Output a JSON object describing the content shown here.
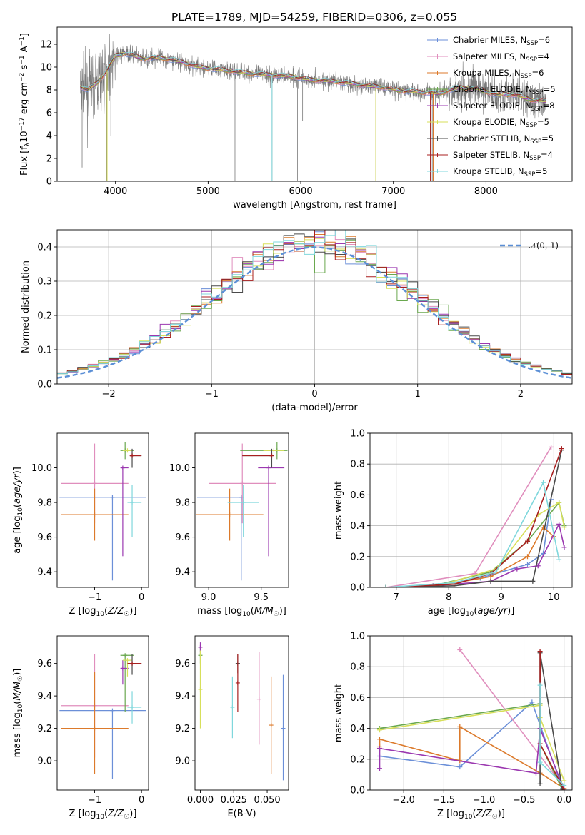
{
  "figure": {
    "title": "PLATE=1789, MJD=54259, FIBERID=0306, z=0.055"
  },
  "colors": {
    "Chabrier MILES": "#6b8fd8",
    "Salpeter MILES": "#e08ebd",
    "Kroupa MILES": "#dc7a2b",
    "Chabrier ELODIE": "#6aa84f",
    "Salpeter ELODIE": "#9b38b0",
    "Kroupa ELODIE": "#d7df5a",
    "Chabrier STELIB": "#4a4a4a",
    "Salpeter STELIB": "#a81f1f",
    "Kroupa STELIB": "#7fd7dc",
    "normal": "#5b8fd6",
    "data": "#7a7a7a"
  },
  "chart_data": [
    {
      "id": "spectrum",
      "type": "line",
      "title": "PLATE=1789, MJD=54259, FIBERID=0306, z=0.055",
      "xlabel": "wavelength [Angstrom, rest frame]",
      "ylabel": "Flux [fλ10⁻¹⁷ erg cm⁻² s⁻¹ A⁻¹]",
      "xlim": [
        3370,
        8930
      ],
      "ylim": [
        0,
        13.5
      ],
      "xticks": [
        4000,
        5000,
        6000,
        7000,
        8000
      ],
      "yticks": [
        0,
        2,
        4,
        6,
        8,
        10,
        12
      ],
      "grid": false,
      "legend": "top-right",
      "legend_entries": [
        {
          "label": "Chabrier MILES, N",
          "sub": "SSP",
          "n": "=6"
        },
        {
          "label": "Salpeter MILES, N",
          "sub": "SSP",
          "n": "=4"
        },
        {
          "label": "Kroupa MILES, N",
          "sub": "SSP",
          "n": "=6"
        },
        {
          "label": "Chabrier ELODIE, N",
          "sub": "SSP",
          "n": "=5"
        },
        {
          "label": "Salpeter ELODIE, N",
          "sub": "SSP",
          "n": "=8"
        },
        {
          "label": "Kroupa ELODIE, N",
          "sub": "SSP",
          "n": "=5"
        },
        {
          "label": "Chabrier STELIB, N",
          "sub": "SSP",
          "n": "=5"
        },
        {
          "label": "Salpeter STELIB, N",
          "sub": "SSP",
          "n": "=4"
        },
        {
          "label": "Kroupa STELIB, N",
          "sub": "SSP",
          "n": "=5"
        }
      ],
      "continuum": {
        "x": [
          3620,
          3700,
          3800,
          3900,
          4000,
          4100,
          4200,
          4300,
          4400,
          4500,
          4700,
          4900,
          5100,
          5300,
          5500,
          5700,
          5900,
          6100,
          6300,
          6500,
          6700,
          6900,
          7100,
          7300,
          7500,
          7700,
          7900,
          8100,
          8300,
          8500,
          8650
        ],
        "y": [
          8.3,
          8.0,
          8.6,
          9.6,
          11.0,
          11.2,
          11.0,
          10.7,
          10.8,
          10.8,
          10.5,
          10.0,
          9.8,
          9.6,
          9.4,
          9.3,
          9.2,
          8.9,
          8.8,
          8.6,
          8.4,
          8.2,
          7.9,
          7.8,
          7.7,
          8.2,
          8.1,
          7.6,
          7.6,
          7.1,
          7.0
        ]
      }
    },
    {
      "id": "residuals",
      "type": "line",
      "xlabel": "(data-model)/error",
      "ylabel": "Normed distribution",
      "xlim": [
        -2.5,
        2.5
      ],
      "ylim": [
        0,
        0.45
      ],
      "xticks": [
        -2,
        -1,
        0,
        1,
        2
      ],
      "yticks": [
        0.0,
        0.1,
        0.2,
        0.3,
        0.4
      ],
      "grid": true,
      "legend": "top-right",
      "legend_label": "𝒩(0, 1)",
      "bin_width": 0.1
    },
    {
      "id": "age-vs-Z",
      "type": "scatter",
      "xlabel": "Z [log₁₀(Z/Z☉)]",
      "ylabel": "age  [log₁₀(age/yr)]",
      "xlim": [
        -1.8,
        0.15
      ],
      "ylim": [
        9.31,
        10.2
      ],
      "xticks": [
        -1,
        0
      ],
      "yticks": [
        9.4,
        9.6,
        9.8,
        10.0
      ],
      "grid": false,
      "series": [
        {
          "name": "Chabrier MILES",
          "x": -0.62,
          "xerr": [
            1.13,
            0.72
          ],
          "y": 9.83,
          "yerr": [
            0.48,
            0.0
          ]
        },
        {
          "name": "Salpeter MILES",
          "x": -1.0,
          "xerr": [
            0.72,
            0.72
          ],
          "y": 9.91,
          "yerr": [
            0.23,
            0.23
          ]
        },
        {
          "name": "Kroupa MILES",
          "x": -1.0,
          "xerr": [
            0.72,
            0.72
          ],
          "y": 9.73,
          "yerr": [
            0.15,
            0.15
          ]
        },
        {
          "name": "Chabrier ELODIE",
          "x": -0.35,
          "xerr": [
            0.1,
            0.18
          ],
          "y": 10.1,
          "yerr": [
            0.05,
            0.05
          ]
        },
        {
          "name": "Salpeter ELODIE",
          "x": -0.4,
          "xerr": [
            0.05,
            0.12
          ],
          "y": 10.0,
          "yerr": [
            0.51,
            0.0
          ]
        },
        {
          "name": "Kroupa ELODIE",
          "x": -0.3,
          "xerr": [
            0.1,
            0.1
          ],
          "y": 10.1,
          "yerr": [
            0.0,
            0.0
          ]
        },
        {
          "name": "Chabrier STELIB",
          "x": -0.2,
          "xerr": [
            0.05,
            0.2
          ],
          "y": 10.07,
          "yerr": [
            0.07,
            0.04
          ]
        },
        {
          "name": "Salpeter STELIB",
          "x": -0.2,
          "xerr": [
            0.05,
            0.2
          ],
          "y": 10.07,
          "yerr": [
            0.0,
            0.0
          ]
        },
        {
          "name": "Kroupa STELIB",
          "x": -0.2,
          "xerr": [
            0.1,
            0.2
          ],
          "y": 9.8,
          "yerr": [
            0.2,
            0.1
          ]
        }
      ]
    },
    {
      "id": "age-vs-mass",
      "type": "scatter",
      "xlabel": "mass [log₁₀(M/M☉)]",
      "ylabel": "",
      "xlim": [
        8.87,
        9.76
      ],
      "ylim": [
        9.31,
        10.2
      ],
      "xticks": [
        9.0,
        9.5
      ],
      "yticks": [
        9.4,
        9.6,
        9.8,
        10.0
      ],
      "grid": false,
      "series": [
        {
          "name": "Chabrier MILES",
          "x": 9.31,
          "xerr": [
            0.42,
            0.0
          ],
          "y": 9.83,
          "yerr": [
            0.48,
            0.0
          ]
        },
        {
          "name": "Salpeter MILES",
          "x": 9.32,
          "xerr": [
            0.32,
            0.32
          ],
          "y": 9.91,
          "yerr": [
            0.23,
            0.23
          ]
        },
        {
          "name": "Kroupa MILES",
          "x": 9.2,
          "xerr": [
            0.32,
            0.32
          ],
          "y": 9.73,
          "yerr": [
            0.15,
            0.15
          ]
        },
        {
          "name": "Chabrier ELODIE",
          "x": 9.65,
          "xerr": [
            0.35,
            0.1
          ],
          "y": 10.1,
          "yerr": [
            0.05,
            0.05
          ]
        },
        {
          "name": "Salpeter ELODIE",
          "x": 9.57,
          "xerr": [
            0.1,
            0.15
          ],
          "y": 10.0,
          "yerr": [
            0.51,
            0.0
          ]
        },
        {
          "name": "Kroupa ELODIE",
          "x": 9.62,
          "xerr": [
            0.1,
            0.1
          ],
          "y": 10.1,
          "yerr": [
            0.0,
            0.0
          ]
        },
        {
          "name": "Chabrier STELIB",
          "x": 9.6,
          "xerr": [
            0.28,
            0.0
          ],
          "y": 10.07,
          "yerr": [
            0.07,
            0.04
          ]
        },
        {
          "name": "Salpeter STELIB",
          "x": 9.6,
          "xerr": [
            0.28,
            0.0
          ],
          "y": 10.07,
          "yerr": [
            0.0,
            0.0
          ]
        },
        {
          "name": "Kroupa STELIB",
          "x": 9.33,
          "xerr": [
            0.15,
            0.15
          ],
          "y": 9.8,
          "yerr": [
            0.2,
            0.1
          ]
        }
      ]
    },
    {
      "id": "massweight-vs-age",
      "type": "line",
      "xlabel": "age  [log₁₀(age/yr)]",
      "ylabel": "mass weight",
      "xlim": [
        6.5,
        10.35
      ],
      "ylim": [
        0,
        1
      ],
      "xticks": [
        7,
        8,
        9,
        10
      ],
      "yticks": [
        0.0,
        0.2,
        0.4,
        0.6,
        0.8,
        1.0
      ],
      "grid": true,
      "series": [
        {
          "name": "Chabrier MILES",
          "x": [
            6.8,
            7.7,
            8.6,
            9.5,
            9.8,
            9.95
          ],
          "y": [
            0.0,
            0.01,
            0.06,
            0.15,
            0.22,
            0.57
          ]
        },
        {
          "name": "Salpeter MILES",
          "x": [
            6.8,
            8.5,
            9.95
          ],
          "y": [
            0.0,
            0.09,
            0.91
          ]
        },
        {
          "name": "Kroupa MILES",
          "x": [
            6.8,
            7.8,
            8.8,
            9.5,
            9.8,
            10.0
          ],
          "y": [
            0.0,
            0.01,
            0.07,
            0.2,
            0.39,
            0.33
          ]
        },
        {
          "name": "Chabrier ELODIE",
          "x": [
            6.8,
            7.7,
            8.8,
            9.5,
            10.1,
            10.2
          ],
          "y": [
            0.0,
            0.01,
            0.1,
            0.3,
            0.55,
            0.4
          ]
        },
        {
          "name": "Salpeter ELODIE",
          "x": [
            6.8,
            7.7,
            8.8,
            9.3,
            9.7,
            10.1,
            10.2
          ],
          "y": [
            0.0,
            0.01,
            0.04,
            0.12,
            0.14,
            0.41,
            0.26
          ]
        },
        {
          "name": "Kroupa ELODIE",
          "x": [
            6.8,
            7.8,
            8.9,
            9.7,
            10.1,
            10.2
          ],
          "y": [
            0.0,
            0.01,
            0.12,
            0.47,
            0.55,
            0.39
          ]
        },
        {
          "name": "Chabrier STELIB",
          "x": [
            6.8,
            8.1,
            8.8,
            9.6,
            10.15
          ],
          "y": [
            0.0,
            0.01,
            0.04,
            0.04,
            0.89
          ]
        },
        {
          "name": "Salpeter STELIB",
          "x": [
            6.8,
            8.1,
            8.8,
            9.5,
            10.15
          ],
          "y": [
            0.0,
            0.02,
            0.09,
            0.3,
            0.9
          ]
        },
        {
          "name": "Kroupa STELIB",
          "x": [
            6.8,
            8.1,
            8.9,
            9.8,
            10.1
          ],
          "y": [
            0.0,
            0.03,
            0.1,
            0.68,
            0.18
          ]
        }
      ]
    },
    {
      "id": "mass-vs-Z",
      "type": "scatter",
      "xlabel": "Z [log₁₀(Z/Z☉)]",
      "ylabel": "mass [log₁₀(M/M☉)]",
      "xlim": [
        -1.8,
        0.15
      ],
      "ylim": [
        8.82,
        9.77
      ],
      "xticks": [
        -1,
        0
      ],
      "yticks": [
        9.0,
        9.2,
        9.4,
        9.6
      ],
      "grid": false,
      "series": [
        {
          "name": "Chabrier MILES",
          "x": -0.62,
          "xerr": [
            1.13,
            0.72
          ],
          "y": 9.31,
          "yerr": [
            0.42,
            0.0
          ]
        },
        {
          "name": "Salpeter MILES",
          "x": -1.0,
          "xerr": [
            0.72,
            0.72
          ],
          "y": 9.34,
          "yerr": [
            0.32,
            0.32
          ]
        },
        {
          "name": "Kroupa MILES",
          "x": -1.0,
          "xerr": [
            0.72,
            0.72
          ],
          "y": 9.2,
          "yerr": [
            0.28,
            0.35
          ]
        },
        {
          "name": "Chabrier ELODIE",
          "x": -0.35,
          "xerr": [
            0.1,
            0.18
          ],
          "y": 9.65,
          "yerr": [
            0.35,
            0.0
          ]
        },
        {
          "name": "Salpeter ELODIE",
          "x": -0.4,
          "xerr": [
            0.05,
            0.12
          ],
          "y": 9.57,
          "yerr": [
            0.1,
            0.05
          ]
        },
        {
          "name": "Kroupa ELODIE",
          "x": -0.3,
          "xerr": [
            0.1,
            0.1
          ],
          "y": 9.62,
          "yerr": [
            0.1,
            0.0
          ]
        },
        {
          "name": "Chabrier STELIB",
          "x": -0.2,
          "xerr": [
            0.05,
            0.2
          ],
          "y": 9.6,
          "yerr": [
            0.07,
            0.06
          ]
        },
        {
          "name": "Salpeter STELIB",
          "x": -0.2,
          "xerr": [
            0.1,
            0.2
          ],
          "y": 9.6,
          "yerr": [
            0.0,
            0.0
          ]
        },
        {
          "name": "Kroupa STELIB",
          "x": -0.2,
          "xerr": [
            0.1,
            0.2
          ],
          "y": 9.33,
          "yerr": [
            0.1,
            0.1
          ]
        }
      ]
    },
    {
      "id": "mass-vs-EBV",
      "type": "scatter",
      "xlabel": "E(B-V)",
      "ylabel": "",
      "xlim": [
        -0.004,
        0.066
      ],
      "ylim": [
        8.82,
        9.77
      ],
      "xticks": [
        0.0,
        0.025,
        0.05
      ],
      "yticks": [
        9.0,
        9.2,
        9.4,
        9.6
      ],
      "grid": false,
      "series": [
        {
          "name": "Chabrier MILES",
          "x": 0.062,
          "y": 9.2,
          "yerr": [
            0.32,
            0.33
          ]
        },
        {
          "name": "Salpeter MILES",
          "x": 0.044,
          "y": 9.38,
          "yerr": [
            0.28,
            0.29
          ]
        },
        {
          "name": "Kroupa MILES",
          "x": 0.053,
          "y": 9.22,
          "yerr": [
            0.3,
            0.3
          ]
        },
        {
          "name": "Chabrier ELODIE",
          "x": 0.0,
          "y": 9.65,
          "yerr": [
            0.05,
            0.05
          ]
        },
        {
          "name": "Salpeter ELODIE",
          "x": 0.0,
          "y": 9.7,
          "yerr": [
            0.03,
            0.03
          ]
        },
        {
          "name": "Kroupa ELODIE",
          "x": 0.0,
          "y": 9.44,
          "yerr": [
            0.24,
            0.24
          ]
        },
        {
          "name": "Chabrier STELIB",
          "x": 0.028,
          "y": 9.6,
          "yerr": [
            0.06,
            0.06
          ]
        },
        {
          "name": "Salpeter STELIB",
          "x": 0.028,
          "y": 9.48,
          "yerr": [
            0.18,
            0.18
          ]
        },
        {
          "name": "Kroupa STELIB",
          "x": 0.024,
          "y": 9.33,
          "yerr": [
            0.19,
            0.19
          ]
        }
      ]
    },
    {
      "id": "massweight-vs-Z",
      "type": "line",
      "xlabel": "Z [log₁₀(Z/Z☉)]",
      "ylabel": "mass weight",
      "xlim": [
        -2.42,
        0.1
      ],
      "ylim": [
        0,
        1
      ],
      "xticks": [
        -2.0,
        -1.5,
        -1.0,
        -0.5,
        0.0
      ],
      "yticks": [
        0.0,
        0.2,
        0.4,
        0.6,
        0.8,
        1.0
      ],
      "grid": true,
      "series": [
        {
          "name": "Chabrier MILES",
          "x": [
            -2.3,
            -1.3,
            -0.4,
            -0.02
          ],
          "y": [
            0.22,
            0.15,
            0.57,
            0.01
          ]
        },
        {
          "name": "Salpeter MILES",
          "x": [
            -1.3,
            -0.02
          ],
          "y": [
            0.91,
            0.03
          ]
        },
        {
          "name": "Kroupa MILES",
          "x": [
            -2.3,
            -2.3,
            -1.3,
            -1.3,
            -0.3,
            0.0
          ],
          "y": [
            0.28,
            0.33,
            0.19,
            0.41,
            0.11,
            0.01
          ]
        },
        {
          "name": "Chabrier ELODIE",
          "x": [
            -2.3,
            -0.3,
            -0.3,
            -0.02
          ],
          "y": [
            0.4,
            0.56,
            0.3,
            0.0
          ]
        },
        {
          "name": "Salpeter ELODIE",
          "x": [
            -2.3,
            -2.3,
            -0.35,
            -0.3,
            0.0
          ],
          "y": [
            0.14,
            0.27,
            0.11,
            0.4,
            0.0
          ]
        },
        {
          "name": "Kroupa ELODIE",
          "x": [
            -2.3,
            -0.3,
            -0.3,
            0.0
          ],
          "y": [
            0.39,
            0.55,
            0.47,
            0.06
          ]
        },
        {
          "name": "Chabrier STELIB",
          "x": [
            -0.3,
            -0.3,
            -0.02
          ],
          "y": [
            0.04,
            0.89,
            0.0
          ]
        },
        {
          "name": "Salpeter STELIB",
          "x": [
            -0.3,
            -0.3,
            0.0
          ],
          "y": [
            0.9,
            0.3,
            0.0
          ]
        },
        {
          "name": "Kroupa STELIB",
          "x": [
            -0.3,
            -0.3,
            0.0
          ],
          "y": [
            0.68,
            0.18,
            0.03
          ]
        }
      ]
    }
  ]
}
